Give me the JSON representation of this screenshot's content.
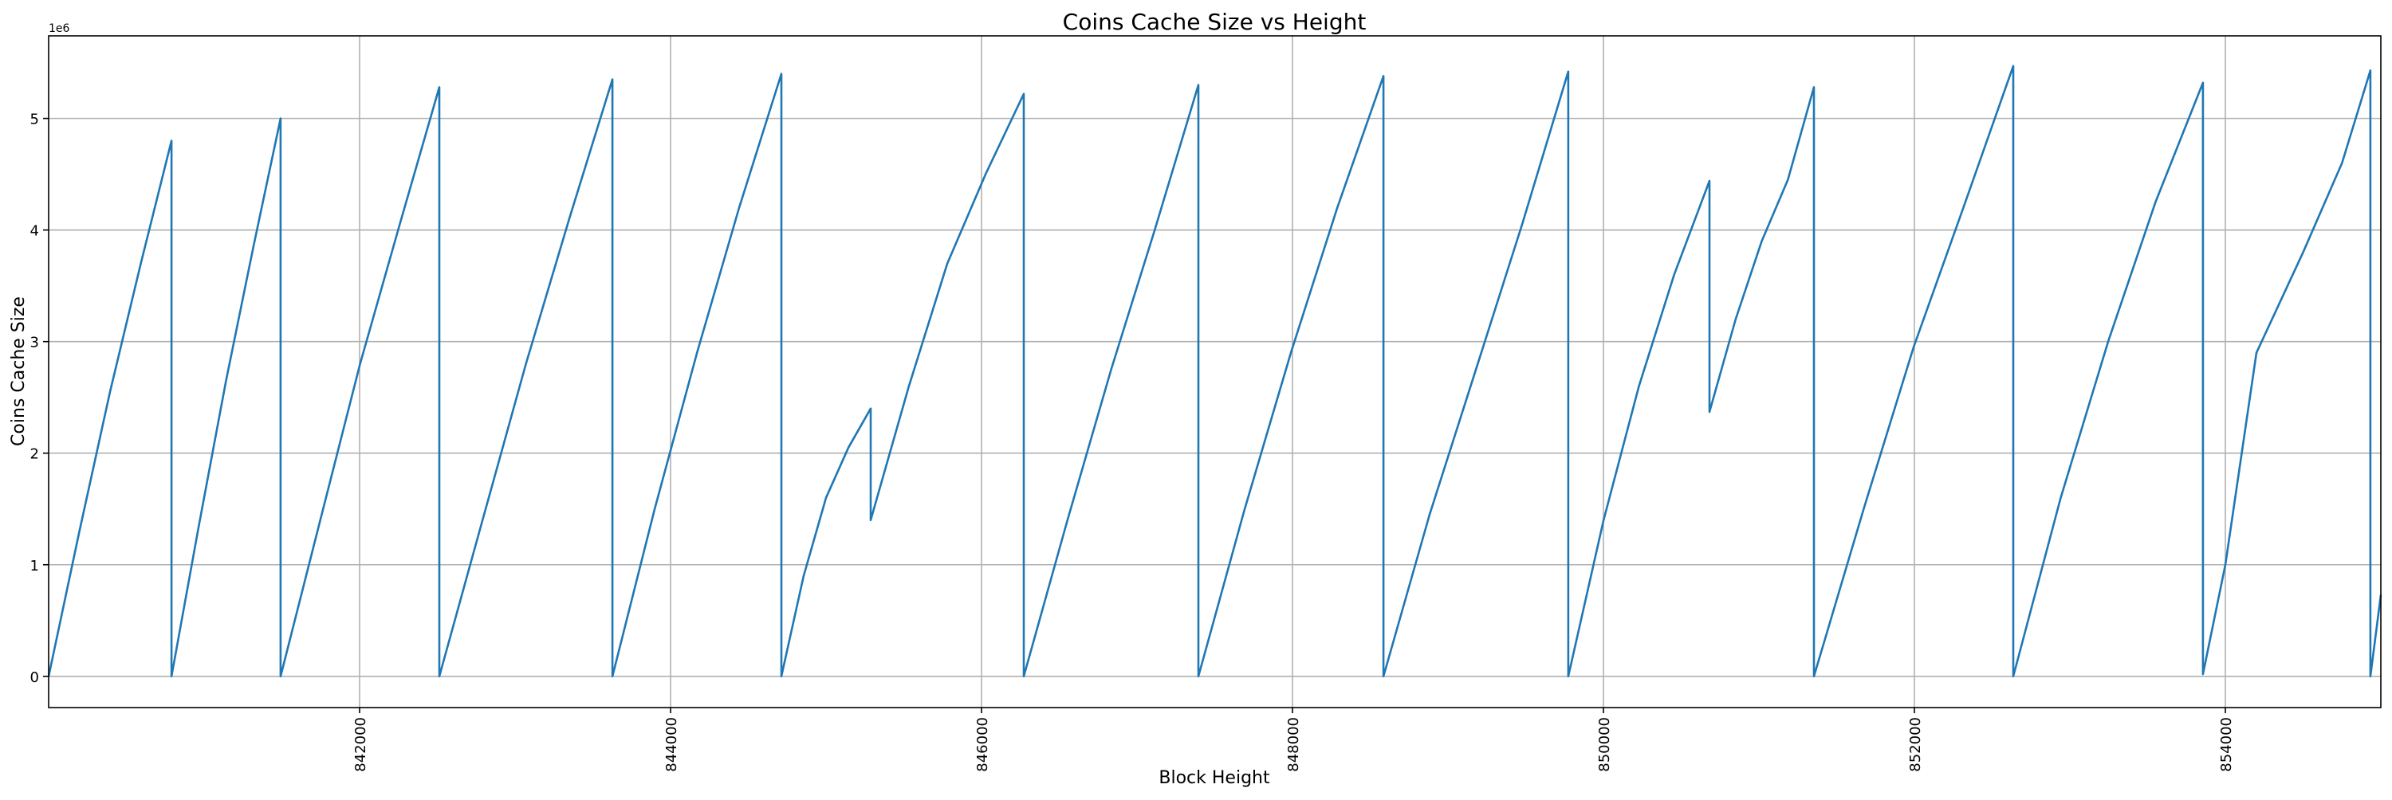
{
  "chart_data": {
    "type": "line",
    "title": "Coins Cache Size vs Height",
    "xlabel": "Block Height",
    "ylabel": "Coins Cache Size",
    "y_offset_label": "1e6",
    "xlim": [
      840000,
      855000
    ],
    "ylim": [
      -280000,
      5740000
    ],
    "xticks": [
      842000,
      844000,
      846000,
      848000,
      850000,
      852000,
      854000
    ],
    "xtick_labels": [
      "842000",
      "844000",
      "846000",
      "848000",
      "850000",
      "852000",
      "854000"
    ],
    "yticks": [
      0,
      1000000,
      2000000,
      3000000,
      4000000,
      5000000
    ],
    "ytick_labels": [
      "0",
      "1",
      "2",
      "3",
      "4",
      "5"
    ],
    "grid": true,
    "line_color": "#1f77b4",
    "series": [
      {
        "x": [
          840000,
          840198,
          840395,
          840593,
          840790,
          840790,
          840966,
          841141,
          841317,
          841492,
          841492,
          841747,
          842003,
          842258,
          842513,
          842513,
          842791,
          843070,
          843348,
          843626,
          843626,
          843898,
          844170,
          844441,
          844713,
          844713,
          844856,
          845000,
          845144,
          845287,
          845287,
          845533,
          845780,
          846026,
          846272,
          846272,
          846553,
          846834,
          847114,
          847395,
          847395,
          847693,
          847990,
          848288,
          848585,
          848585,
          848882,
          849180,
          849477,
          849774,
          849774,
          850001,
          850228,
          850455,
          850682,
          850682,
          850850,
          851018,
          851186,
          851354,
          851354,
          851674,
          851995,
          852315,
          852636,
          852636,
          852941,
          853246,
          853551,
          853856,
          853856,
          854000,
          854200,
          854500,
          854750,
          854933,
          854933,
          855000
        ],
        "y": [
          0,
          1300000,
          2550000,
          3700000,
          4800000,
          0,
          1350000,
          2650000,
          3850000,
          5000000,
          0,
          1400000,
          2800000,
          4050000,
          5280000,
          0,
          1400000,
          2800000,
          4100000,
          5350000,
          0,
          1500000,
          2900000,
          4200000,
          5400000,
          0,
          900000,
          1600000,
          2050000,
          2400000,
          1400000,
          2600000,
          3700000,
          4500000,
          5220000,
          0,
          1400000,
          2750000,
          4000000,
          5300000,
          0,
          1500000,
          2900000,
          4200000,
          5380000,
          0,
          1450000,
          2750000,
          4050000,
          5420000,
          0,
          1400000,
          2600000,
          3600000,
          4440000,
          2370000,
          3200000,
          3900000,
          4450000,
          5280000,
          0,
          1500000,
          2950000,
          4200000,
          5470000,
          0,
          1600000,
          3000000,
          4250000,
          5320000,
          20000,
          1000000,
          2900000,
          3800000,
          4600000,
          5430000,
          0,
          730000
        ]
      }
    ]
  }
}
